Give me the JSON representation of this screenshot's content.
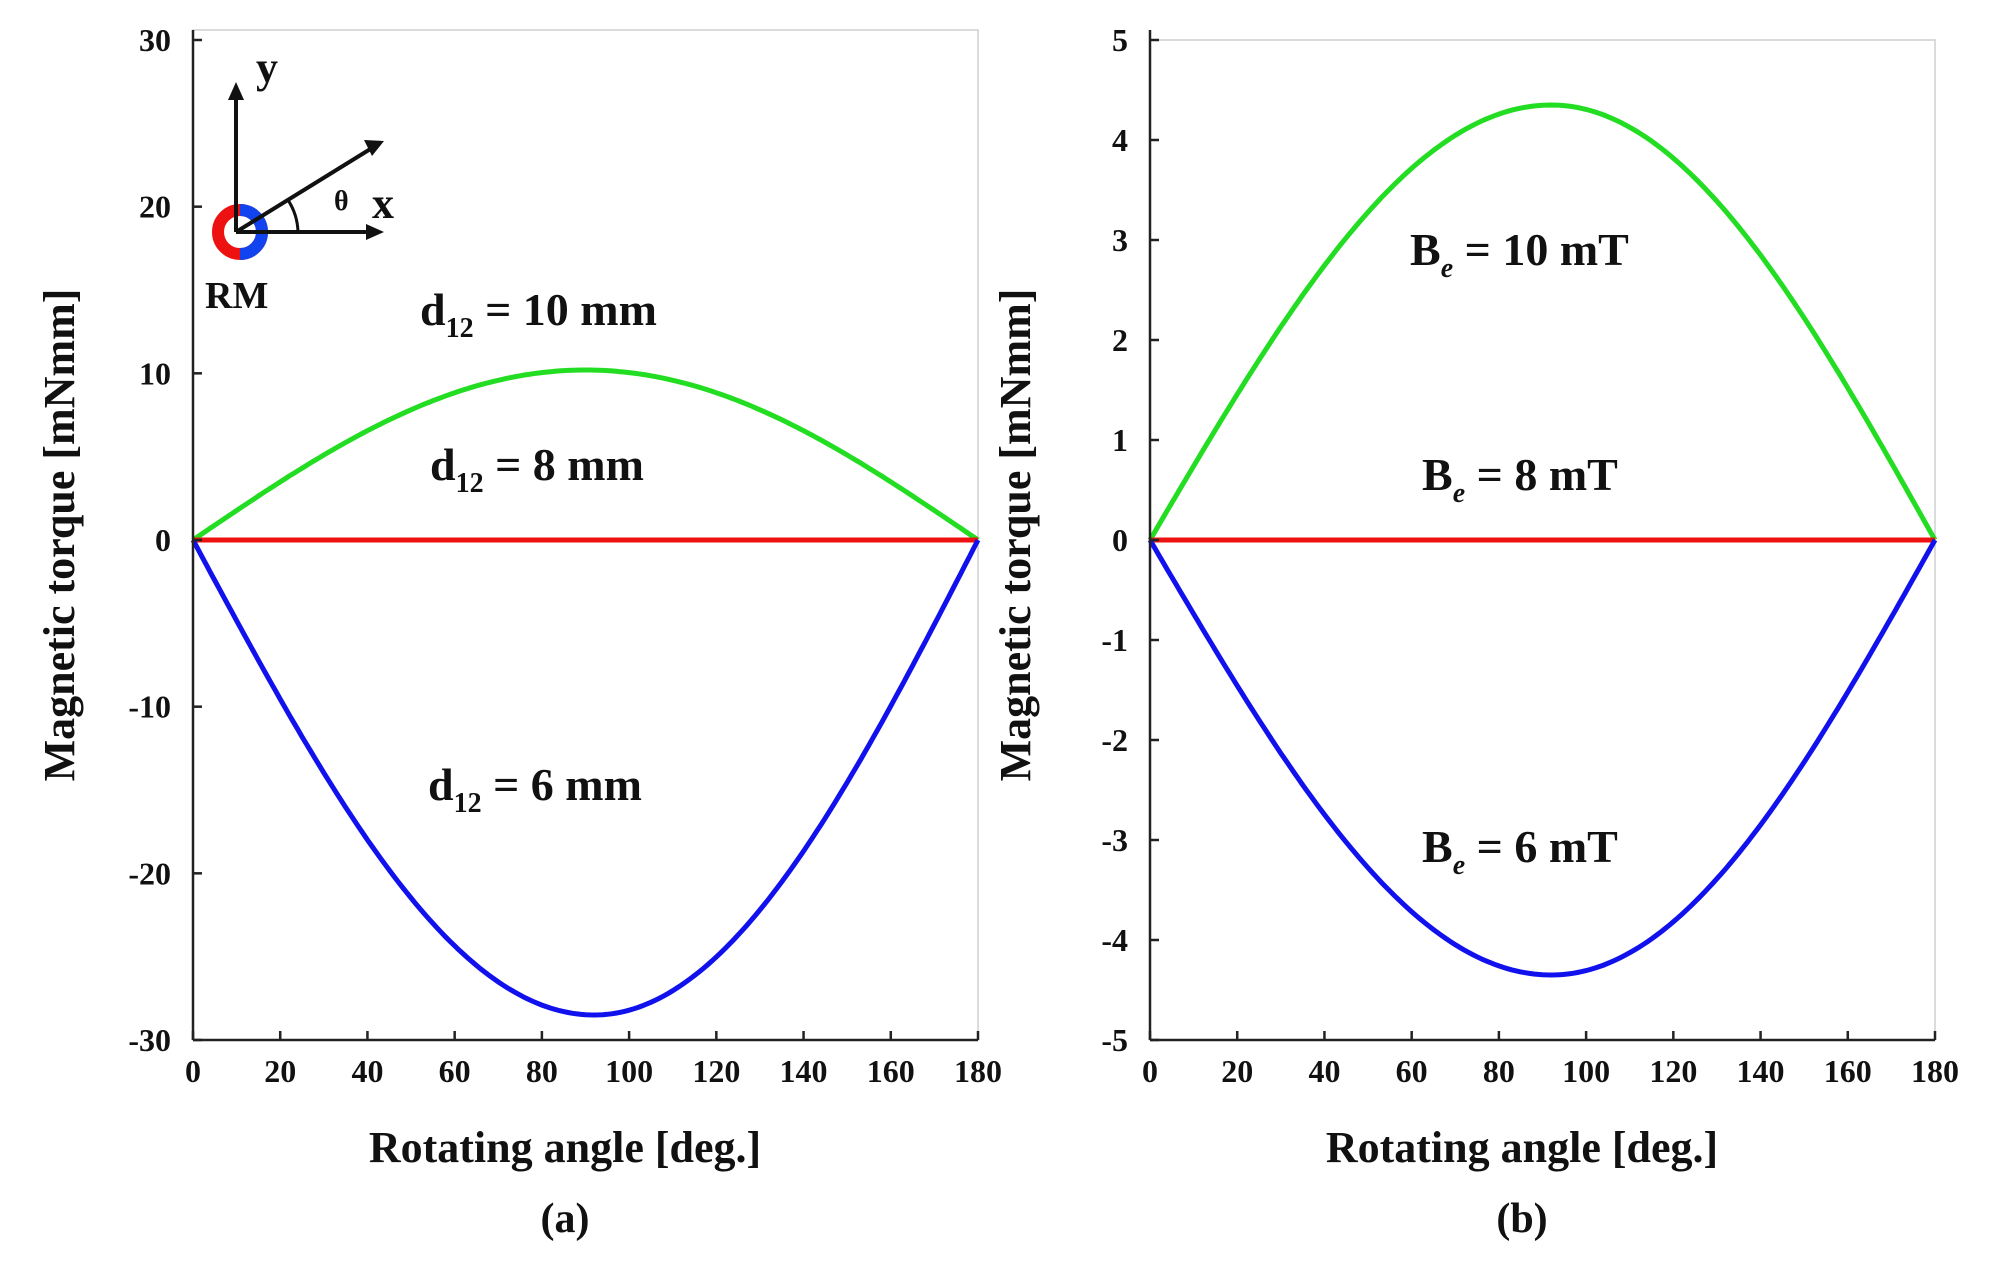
{
  "chart_data": [
    {
      "type": "line",
      "panel_label": "(a)",
      "xlabel": "Rotating angle [deg.]",
      "ylabel": "Magnetic torque [mNmm]",
      "xlim": [
        0,
        180
      ],
      "ylim": [
        -30,
        30
      ],
      "xticks": [
        0,
        20,
        40,
        60,
        80,
        100,
        120,
        140,
        160,
        180
      ],
      "yticks": [
        -30,
        -20,
        -10,
        0,
        10,
        20,
        30
      ],
      "series": [
        {
          "name": "d12 = 10 mm",
          "label_main": "d",
          "label_sub": "12",
          "label_rest": " = 10 mm",
          "color": "#22dd22",
          "amplitude": 10.2,
          "peak_x": 90,
          "x": [
            0,
            180
          ],
          "shape": "sine-half"
        },
        {
          "name": "d12 = 8 mm",
          "label_main": "d",
          "label_sub": "12",
          "label_rest": " = 8 mm",
          "color": "#ee1111",
          "amplitude": 0.0,
          "peak_x": 90,
          "x": [
            0,
            180
          ],
          "shape": "sine-half"
        },
        {
          "name": "d12 = 6 mm",
          "label_main": "d",
          "label_sub": "12",
          "label_rest": " = 6 mm",
          "color": "#1111ee",
          "amplitude": -28.5,
          "peak_x": 92,
          "x": [
            0,
            180
          ],
          "shape": "sine-half"
        }
      ],
      "inset": {
        "y_axis": "y",
        "x_axis": "x",
        "angle": "θ",
        "magnet": "RM",
        "colors": {
          "north": "#ee1111",
          "south": "#1144ee"
        }
      }
    },
    {
      "type": "line",
      "panel_label": "(b)",
      "xlabel": "Rotating angle [deg.]",
      "ylabel": "Magnetic torque [mNmm]",
      "xlim": [
        0,
        180
      ],
      "ylim": [
        -5,
        5
      ],
      "xticks": [
        0,
        20,
        40,
        60,
        80,
        100,
        120,
        140,
        160,
        180
      ],
      "yticks": [
        -5,
        -4,
        -3,
        -2,
        -1,
        0,
        1,
        2,
        3,
        4,
        5
      ],
      "series": [
        {
          "name": "Be = 10 mT",
          "label_main": "B",
          "label_sub": "e",
          "label_rest": " = 10 mT",
          "color": "#22dd22",
          "amplitude": 4.35,
          "peak_x": 92,
          "x": [
            0,
            180
          ],
          "shape": "sine-half"
        },
        {
          "name": "Be = 8 mT",
          "label_main": "B",
          "label_sub": "e",
          "label_rest": " = 8 mT",
          "color": "#ee1111",
          "amplitude": 0.0,
          "peak_x": 90,
          "x": [
            0,
            180
          ],
          "shape": "sine-half"
        },
        {
          "name": "Be = 6 mT",
          "label_main": "B",
          "label_sub": "e",
          "label_rest": " = 6 mT",
          "color": "#1111ee",
          "amplitude": -4.35,
          "peak_x": 92,
          "x": [
            0,
            180
          ],
          "shape": "sine-half"
        }
      ]
    }
  ]
}
